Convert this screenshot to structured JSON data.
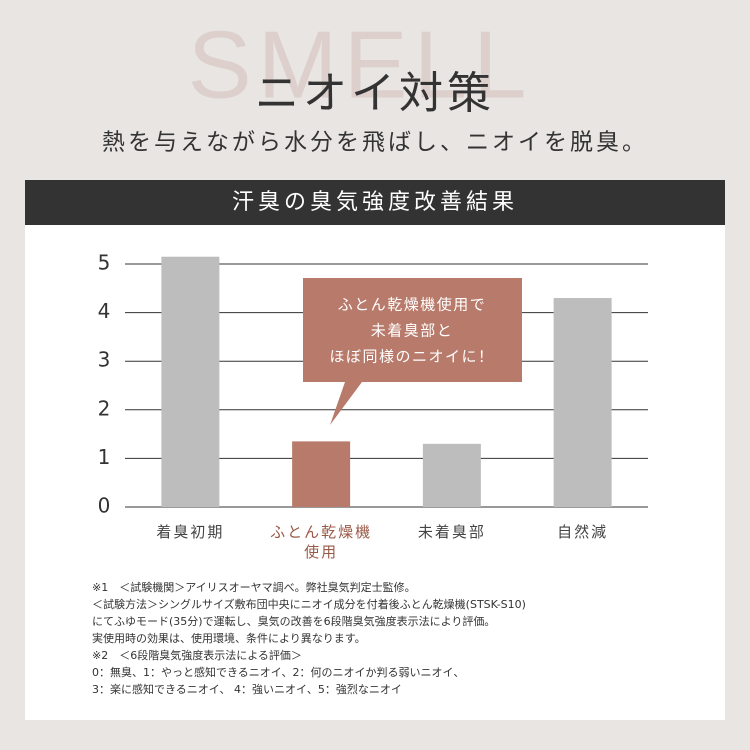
{
  "background_text": "SMELL",
  "heading": "ニオイ対策",
  "subheading": "熱を与えながら水分を飛ばし、ニオイを脱臭。",
  "chart_data": {
    "type": "bar",
    "title": "汗臭の臭気強度改善結果",
    "categories": [
      "着臭初期",
      "ふとん乾燥機\n使用",
      "未着臭部",
      "自然減"
    ],
    "values": [
      5.15,
      1.35,
      1.3,
      4.3
    ],
    "colors": [
      "#bdbdbd",
      "#b87a6a",
      "#bdbdbd",
      "#bdbdbd"
    ],
    "label_colors": [
      "#444444",
      "#9a5a48",
      "#444444",
      "#444444"
    ],
    "ylim": [
      0,
      5
    ],
    "yticks": [
      0,
      1,
      2,
      3,
      4,
      5
    ],
    "grid": true,
    "annotation": [
      "ふとん乾燥機使用で",
      "未着臭部と",
      "ほぼ同様のニオイに！"
    ]
  },
  "footnotes": [
    "※1　＜試験機関＞アイリスオーヤマ調べ。弊社臭気判定士監修。",
    "＜試験方法＞シングルサイズ敷布団中央にニオイ成分を付着後ふとん乾燥機(STSK-S10)",
    "にてふゆモード(35分)で運転し、臭気の改善を6段階臭気強度表示法により評価。",
    "実使用時の効果は、使用環境、条件により異なります。",
    "※2　＜6段階臭気強度表示法による評価＞",
    "0：無臭、1：やっと感知できるニオイ、2：何のニオイか判る弱いニオイ、",
    "3：楽に感知できるニオイ、 4：強いニオイ、5：強烈なニオイ"
  ]
}
